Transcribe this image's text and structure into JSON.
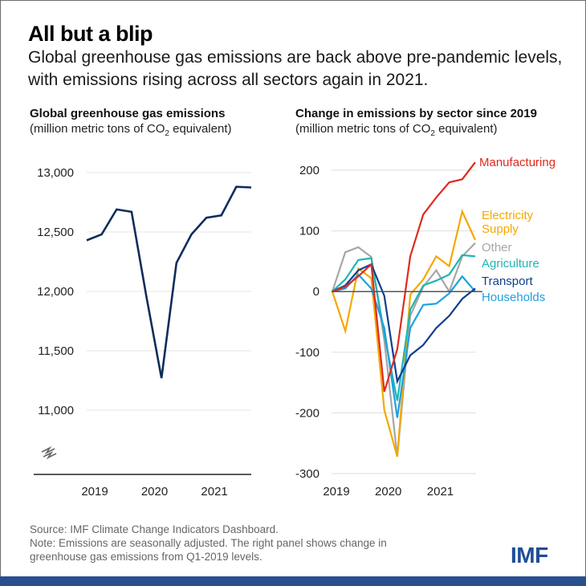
{
  "header": {
    "title": "All but a blip",
    "subtitle": "Global greenhouse gas emissions are back above pre-pandemic levels, with emissions rising across all sectors again in 2021."
  },
  "footer": {
    "source": "Source: IMF Climate Change Indicators Dashboard.",
    "note_line1": "Note: Emissions are seasonally adjusted. The right panel shows change in",
    "note_line2": "greenhouse gas emissions from Q1-2019 levels.",
    "logo": "IMF"
  },
  "colors": {
    "brand": "#1f4e96",
    "bar": "#2a4f8f"
  },
  "chart_data": [
    {
      "type": "line",
      "title": "Global greenhouse gas  emissions",
      "subtitle_prefix": "(million metric tons of CO",
      "subtitle_sub": "2",
      "subtitle_suffix": " equivalent)",
      "xlabel": "",
      "ylabel": "",
      "x": [
        "2019Q1",
        "2019Q2",
        "2019Q3",
        "2019Q4",
        "2020Q1",
        "2020Q2",
        "2020Q3",
        "2020Q4",
        "2021Q1",
        "2021Q2",
        "2021Q3",
        "2021Q4"
      ],
      "x_tick_labels": [
        "2019",
        "2020",
        "2021"
      ],
      "y_ticks": [
        11000,
        11500,
        12000,
        12500,
        13000
      ],
      "y_tick_labels": [
        "11,000",
        "11,500",
        "12,000",
        "12,500",
        "13,000"
      ],
      "ylim": [
        10700,
        13100
      ],
      "axis_break": true,
      "grid": true,
      "series": [
        {
          "name": "Global greenhouse gas emissions",
          "color": "#0f2d5c",
          "values": [
            12430,
            12480,
            12690,
            12670,
            11950,
            11270,
            12240,
            12480,
            12620,
            12640,
            12880,
            12875
          ]
        }
      ]
    },
    {
      "type": "line",
      "title": "Change in emissions by sector since 2019",
      "subtitle_prefix": "(million metric tons of CO",
      "subtitle_sub": "2",
      "subtitle_suffix": " equivalent)",
      "xlabel": "",
      "ylabel": "",
      "x": [
        "2019Q1",
        "2019Q2",
        "2019Q3",
        "2019Q4",
        "2020Q1",
        "2020Q2",
        "2020Q3",
        "2020Q4",
        "2021Q1",
        "2021Q2",
        "2021Q3",
        "2021Q4"
      ],
      "x_tick_labels": [
        "2019",
        "2020",
        "2021"
      ],
      "y_ticks": [
        -300,
        -200,
        -100,
        0,
        100,
        200
      ],
      "y_tick_labels": [
        "-300",
        "-200",
        "-100",
        "0",
        "100",
        "200"
      ],
      "ylim": [
        -310,
        225
      ],
      "grid": true,
      "legend": "right (direct labels)",
      "series": [
        {
          "name": "Other",
          "label": "Other",
          "color": "#a6a6a6",
          "values": [
            0,
            65,
            73,
            57,
            -80,
            -272,
            -40,
            8,
            35,
            0,
            58,
            80
          ]
        },
        {
          "name": "Electricity Supply",
          "label": [
            "Electricity",
            "Supply"
          ],
          "color": "#f5a800",
          "values": [
            0,
            -65,
            38,
            22,
            -195,
            -272,
            -5,
            20,
            58,
            42,
            132,
            85
          ]
        },
        {
          "name": "Agriculture",
          "label": "Agriculture",
          "color": "#1fb5b5",
          "values": [
            0,
            20,
            52,
            55,
            -70,
            -180,
            -30,
            10,
            18,
            28,
            60,
            58
          ]
        },
        {
          "name": "Households",
          "label": "Households",
          "color": "#1fa0e0",
          "values": [
            0,
            5,
            28,
            5,
            -60,
            -208,
            -60,
            -22,
            -20,
            -3,
            25,
            0
          ]
        },
        {
          "name": "Transport",
          "label": "Transport",
          "color": "#0f3f8c",
          "values": [
            0,
            10,
            35,
            45,
            -7,
            -148,
            -105,
            -88,
            -60,
            -40,
            -12,
            5
          ]
        },
        {
          "name": "Manufacturing",
          "label": "Manufacturing",
          "color": "#e02a20",
          "values": [
            0,
            8,
            25,
            45,
            -165,
            -95,
            58,
            127,
            155,
            180,
            185,
            213
          ]
        }
      ]
    }
  ]
}
